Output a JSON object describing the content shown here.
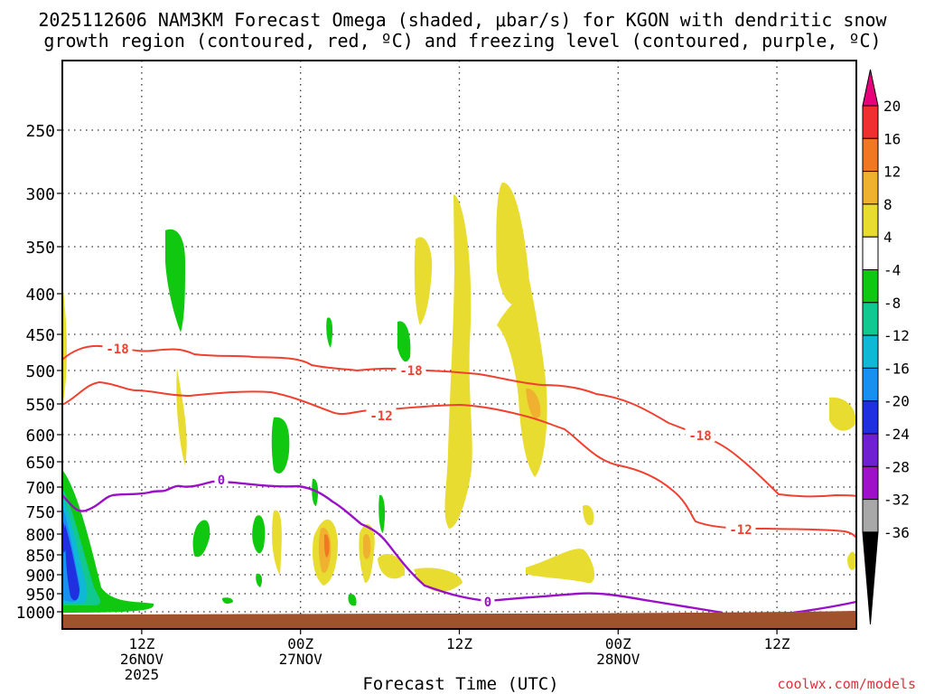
{
  "chart_data": {
    "type": "heatmap",
    "title_line1": "2025112606 NAM3KM Forecast Omega (shaded, μbar/s) for KGON with dendritic snow",
    "title_line2": "growth region (contoured, red, ºC) and freezing level (contoured, purple, ºC)",
    "xlabel": "Forecast Time (UTC)",
    "ylabel": "",
    "credit": "coolwx.com/models",
    "x_ticks": [
      {
        "hour": 12,
        "lines": [
          "12Z",
          "26NOV",
          "2025"
        ]
      },
      {
        "hour": 24,
        "lines": [
          "00Z",
          "27NOV"
        ]
      },
      {
        "hour": 36,
        "lines": [
          "12Z"
        ]
      },
      {
        "hour": 48,
        "lines": [
          "00Z",
          "28NOV"
        ]
      },
      {
        "hour": 60,
        "lines": [
          "12Z"
        ]
      }
    ],
    "xlim_hours": [
      6,
      66
    ],
    "y_ticks": [
      "250",
      "300",
      "350",
      "400",
      "450",
      "500",
      "550",
      "600",
      "650",
      "700",
      "750",
      "800",
      "850",
      "900",
      "950",
      "1000"
    ],
    "colorbar": {
      "labels": [
        "20",
        "16",
        "12",
        "8",
        "4",
        "-4",
        "-8",
        "-12",
        "-16",
        "-20",
        "-24",
        "-28",
        "-32",
        "-36"
      ],
      "colors": [
        "#e8007a",
        "#f03030",
        "#f07820",
        "#f0b030",
        "#e8dc30",
        "#ffffff",
        "#10c810",
        "#10c890",
        "#10b8d8",
        "#1890f0",
        "#2030e0",
        "#7020d0",
        "#a010c8",
        "#a8a8a8",
        "#000000"
      ]
    },
    "contours": {
      "dgz_upper_label": "-18",
      "dgz_lower_label": "-12",
      "freezing_label": "0",
      "dgz_color": "#f04030",
      "freezing_color": "#9a10c8"
    },
    "fill_colors": {
      "up4": "#e8dc30",
      "up8": "#f0b030",
      "up12": "#f07820",
      "dn4": "#10c810",
      "dn8": "#10c890",
      "dn12": "#10b8d8",
      "dn16": "#1890f0",
      "dn20": "#2030e0",
      "ground": "#a0522d"
    }
  }
}
